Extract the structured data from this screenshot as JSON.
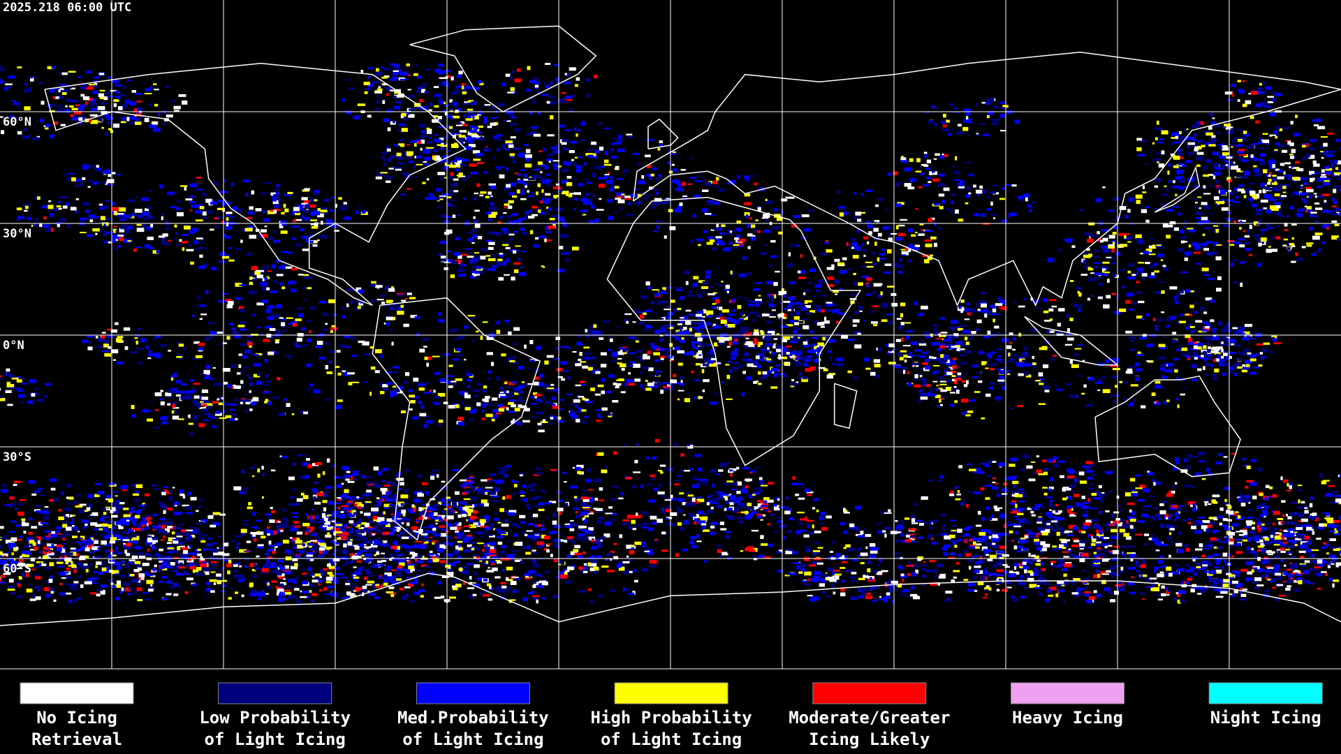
{
  "header": {
    "timestamp": "2025.218 06:00 UTC"
  },
  "latitude_labels": [
    "60°N",
    "30°N",
    "0°N",
    "30°S",
    "60°S"
  ],
  "legend": [
    {
      "color": "#ffffff",
      "lines": [
        "No Icing",
        "Retrieval"
      ]
    },
    {
      "color": "#00007f",
      "lines": [
        "Low Probability",
        "of Light Icing"
      ]
    },
    {
      "color": "#0000ff",
      "lines": [
        "Med.Probability",
        "of Light Icing"
      ]
    },
    {
      "color": "#ffff00",
      "lines": [
        "High Probability",
        "of Light Icing"
      ]
    },
    {
      "color": "#ff0000",
      "lines": [
        "Moderate/Greater",
        "Icing Likely"
      ]
    },
    {
      "color": "#f0a0f0",
      "lines": [
        "Heavy Icing"
      ]
    },
    {
      "color": "#00ffff",
      "lines": [
        "Night Icing"
      ]
    }
  ]
}
